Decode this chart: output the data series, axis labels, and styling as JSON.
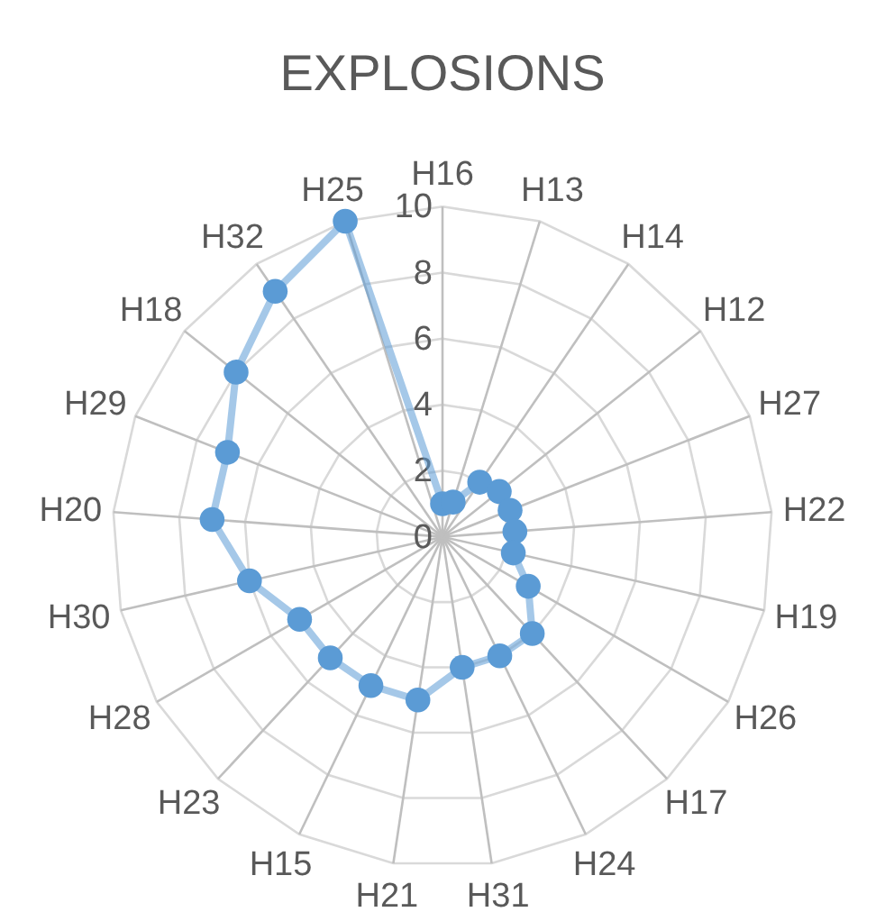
{
  "chart_data": {
    "type": "radar",
    "title": "EXPLOSIONS",
    "categories": [
      "H16",
      "H13",
      "H14",
      "H12",
      "H27",
      "H22",
      "H19",
      "H26",
      "H17",
      "H24",
      "H31",
      "H21",
      "H15",
      "H23",
      "H28",
      "H30",
      "H20",
      "H29",
      "H18",
      "H32",
      "H25"
    ],
    "series": [
      {
        "color": "#5b9bd5",
        "values": [
          1,
          1.1,
          2,
          2.2,
          2.2,
          2.2,
          2.2,
          3,
          4,
          4,
          4,
          5,
          5,
          5,
          5,
          6,
          7,
          7,
          8,
          9,
          10
        ]
      }
    ],
    "ylim": [
      0,
      10
    ],
    "yticks": [
      0,
      2,
      4,
      6,
      8,
      10
    ],
    "grid": true,
    "marker": "circle",
    "line_style": "solid"
  }
}
